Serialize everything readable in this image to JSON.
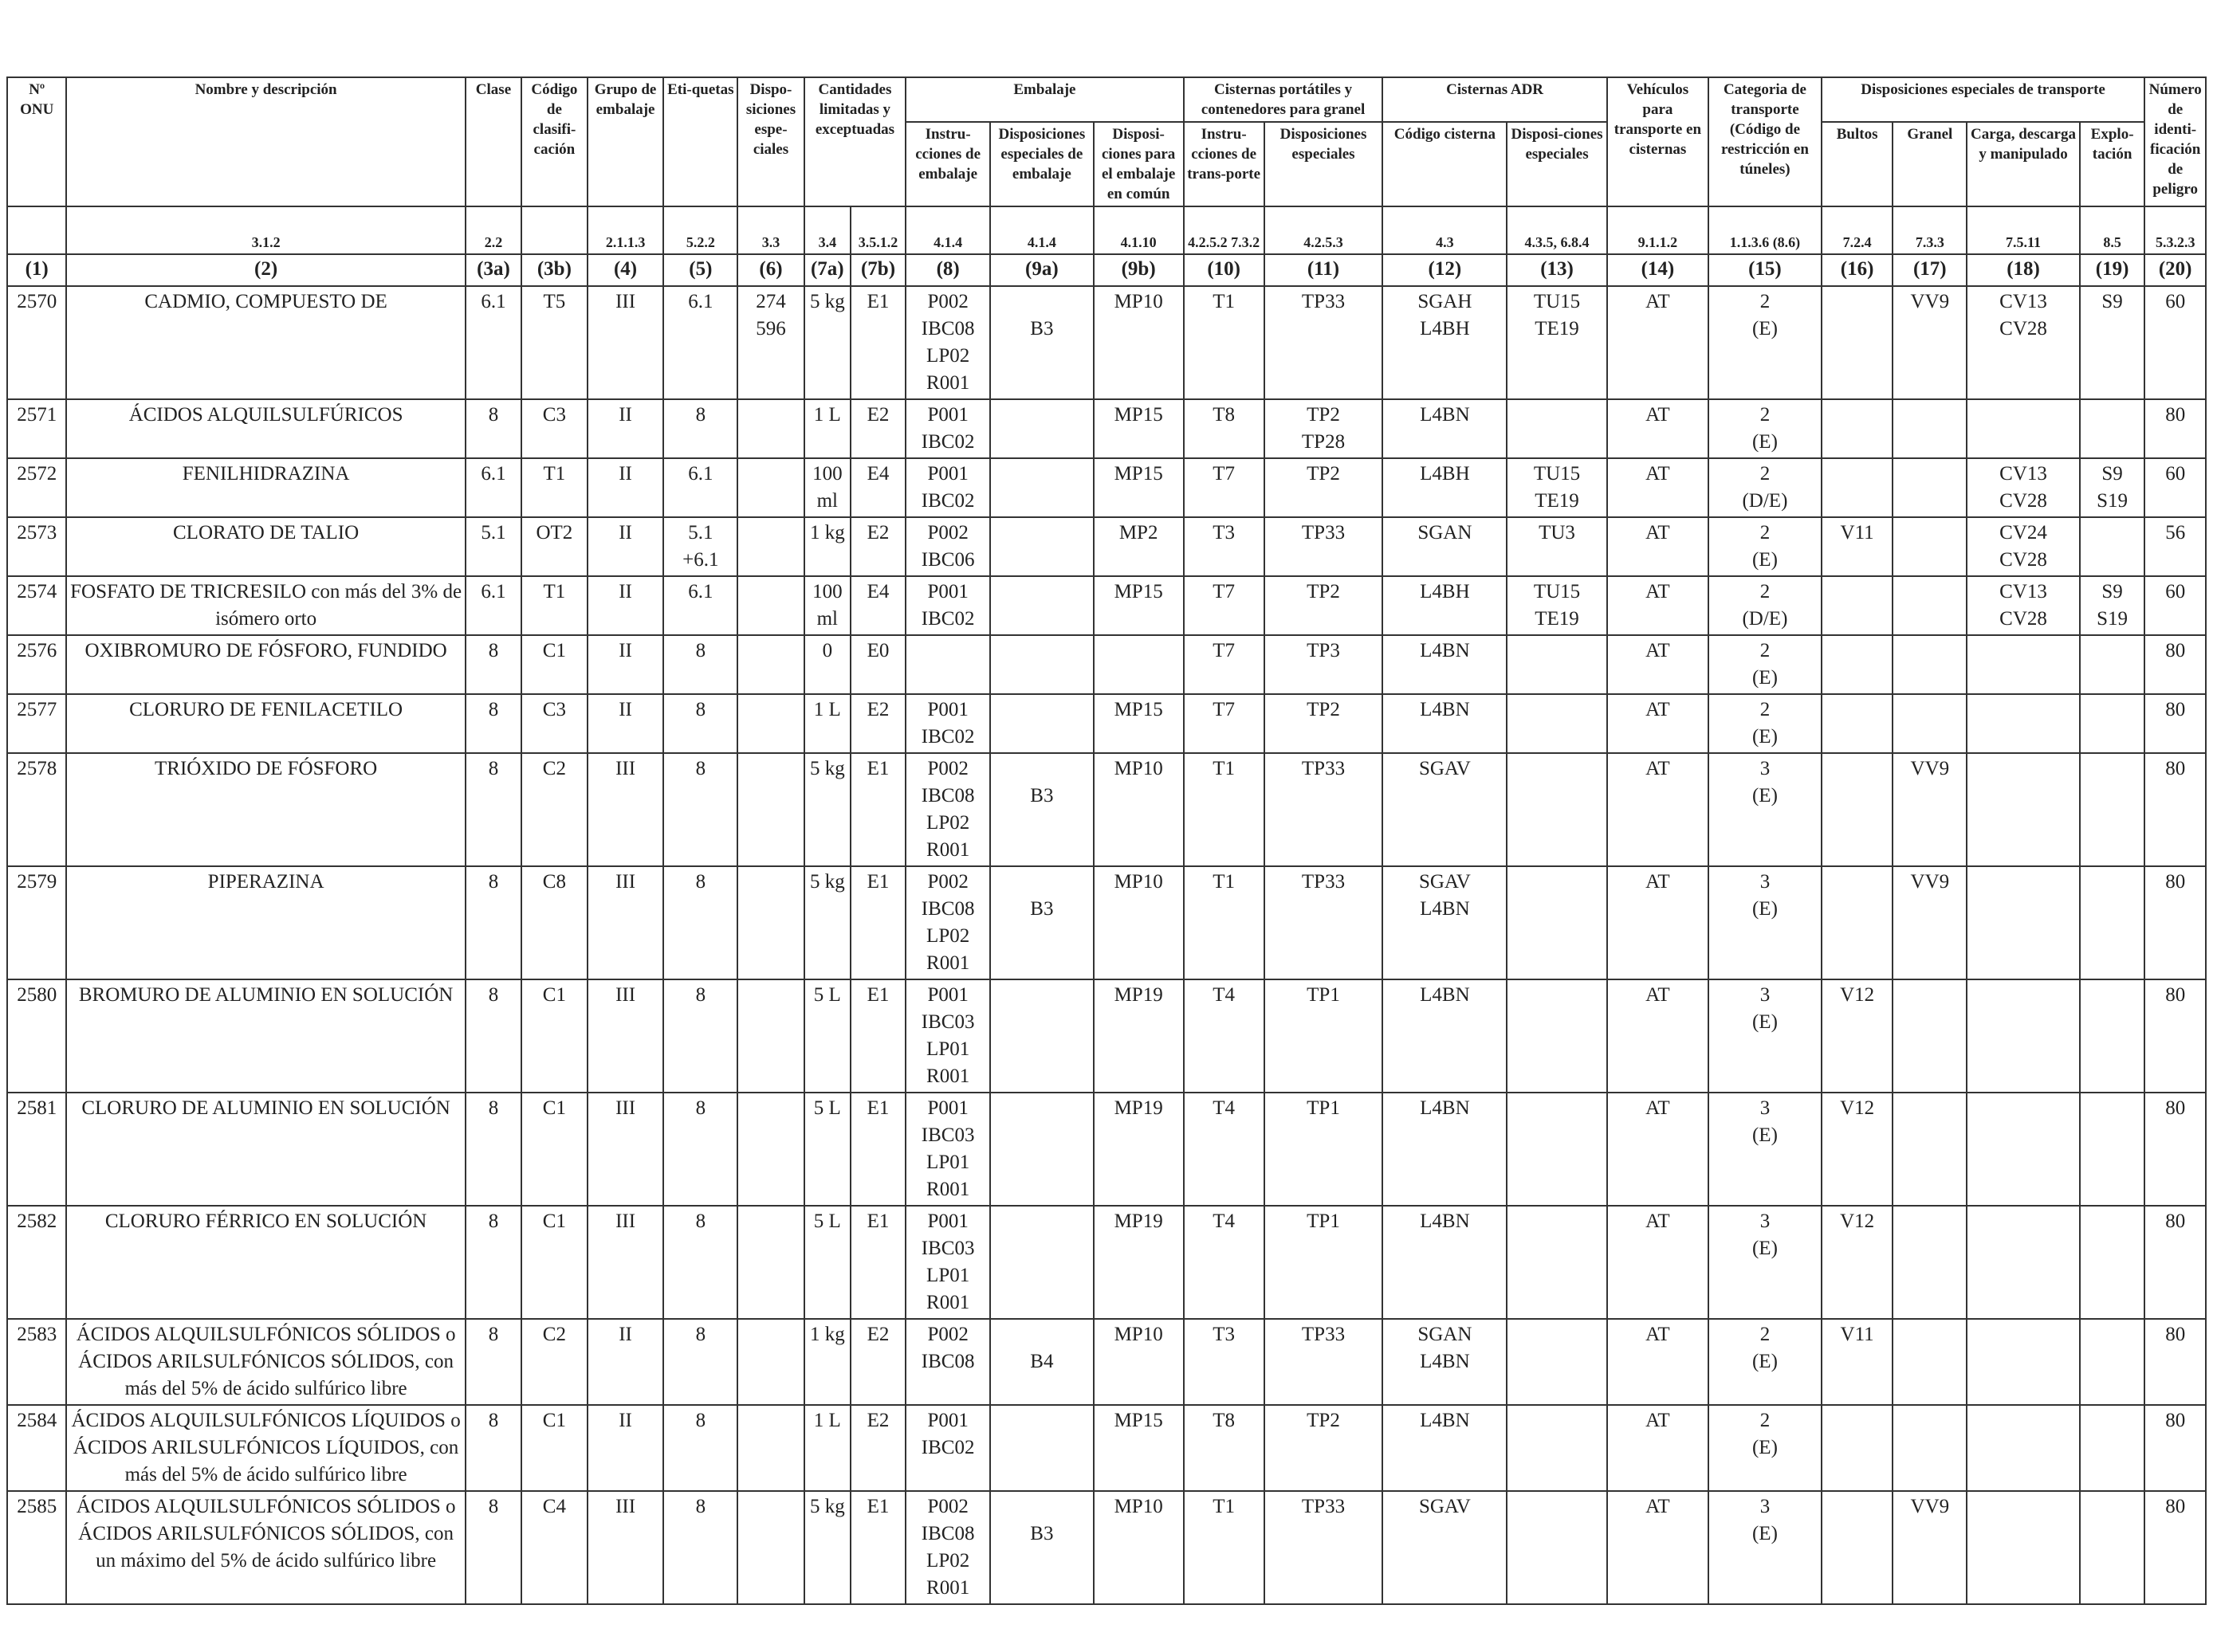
{
  "header": {
    "un": "Nº ONU",
    "name": "Nombre y descripción",
    "class": "Clase",
    "class_code": "Código de clasifi-cación",
    "packing_group": "Grupo de embalaje",
    "labels": "Eti-quetas",
    "special_provisions": "Dispo-siciones espe-ciales",
    "limited_qty": "Cantidades limitadas y exceptuadas",
    "packaging": "Embalaje",
    "packing_instr": "Instru-cciones de embalaje",
    "special_packing": "Disposiciones especiales de embalaje",
    "mixed_packing": "Disposi-ciones para el embalaje en común",
    "portable_tanks": "Cisternas portátiles y contenedores para granel",
    "pt_instr": "Instru-cciones de trans-porte",
    "pt_special": "Disposiciones especiales",
    "adr_tanks": "Cisternas ADR",
    "tank_code": "Código cisterna",
    "tank_special": "Disposi-ciones especiales",
    "vehicle": "Vehículos para transporte en cisternas",
    "transport_cat": "Categoria de transporte (Código de restricción en túneles)",
    "special_transport": "Disposiciones especiales de transporte",
    "packages": "Bultos",
    "bulk": "Granel",
    "loading": "Carga, descarga y manipulado",
    "operation": "Explo-tación",
    "hazard_id": "Número de identi-ficación de peligro"
  },
  "sections": [
    "",
    "3.1.2",
    "2.2",
    "",
    "2.1.1.3",
    "5.2.2",
    "3.3",
    "3.4",
    "3.5.1.2",
    "4.1.4",
    "4.1.4",
    "4.1.10",
    "4.2.5.2 7.3.2",
    "4.2.5.3",
    "4.3",
    "4.3.5, 6.8.4",
    "9.1.1.2",
    "1.1.3.6 (8.6)",
    "7.2.4",
    "7.3.3",
    "7.5.11",
    "8.5",
    "5.3.2.3"
  ],
  "column_numbers": [
    "(1)",
    "(2)",
    "(3a)",
    "(3b)",
    "(4)",
    "(5)",
    "(6)",
    "(7a)",
    "(7b)",
    "(8)",
    "(9a)",
    "(9b)",
    "(10)",
    "(11)",
    "(12)",
    "(13)",
    "(14)",
    "(15)",
    "(16)",
    "(17)",
    "(18)",
    "(19)",
    "(20)"
  ],
  "rows": [
    {
      "c": [
        [
          "2570"
        ],
        [
          "CADMIO, COMPUESTO DE"
        ],
        [
          "6.1"
        ],
        [
          "T5"
        ],
        [
          "III"
        ],
        [
          "6.1"
        ],
        [
          "274",
          "596"
        ],
        [
          "5 kg"
        ],
        [
          "E1"
        ],
        [
          "P002",
          "IBC08",
          "LP02",
          "R001"
        ],
        [
          "",
          "B3"
        ],
        [
          "MP10"
        ],
        [
          "T1"
        ],
        [
          "TP33"
        ],
        [
          "SGAH",
          "L4BH"
        ],
        [
          "TU15",
          "TE19"
        ],
        [
          "AT"
        ],
        [
          "2",
          "(E)"
        ],
        [
          ""
        ],
        [
          "VV9"
        ],
        [
          "CV13",
          "CV28"
        ],
        [
          "S9"
        ],
        [
          "60"
        ]
      ]
    },
    {
      "c": [
        [
          "2571"
        ],
        [
          "ÁCIDOS ALQUILSULFÚRICOS"
        ],
        [
          "8"
        ],
        [
          "C3"
        ],
        [
          "II"
        ],
        [
          "8"
        ],
        [
          ""
        ],
        [
          "1 L"
        ],
        [
          "E2"
        ],
        [
          "P001",
          "IBC02"
        ],
        [
          ""
        ],
        [
          "MP15"
        ],
        [
          "T8"
        ],
        [
          "TP2",
          "TP28"
        ],
        [
          "L4BN"
        ],
        [
          ""
        ],
        [
          "AT"
        ],
        [
          "2",
          "(E)"
        ],
        [
          ""
        ],
        [
          ""
        ],
        [
          ""
        ],
        [
          ""
        ],
        [
          "80"
        ]
      ]
    },
    {
      "c": [
        [
          "2572"
        ],
        [
          "FENILHIDRAZINA"
        ],
        [
          "6.1"
        ],
        [
          "T1"
        ],
        [
          "II"
        ],
        [
          "6.1"
        ],
        [
          ""
        ],
        [
          "100",
          "ml"
        ],
        [
          "E4"
        ],
        [
          "P001",
          "IBC02"
        ],
        [
          ""
        ],
        [
          "MP15"
        ],
        [
          "T7"
        ],
        [
          "TP2"
        ],
        [
          "L4BH"
        ],
        [
          "TU15",
          "TE19"
        ],
        [
          "AT"
        ],
        [
          "2",
          "(D/E)"
        ],
        [
          ""
        ],
        [
          ""
        ],
        [
          "CV13",
          "CV28"
        ],
        [
          "S9",
          "S19"
        ],
        [
          "60"
        ]
      ]
    },
    {
      "c": [
        [
          "2573"
        ],
        [
          "CLORATO DE TALIO"
        ],
        [
          "5.1"
        ],
        [
          "OT2"
        ],
        [
          "II"
        ],
        [
          "5.1",
          "+6.1"
        ],
        [
          ""
        ],
        [
          "1 kg"
        ],
        [
          "E2"
        ],
        [
          "P002",
          "IBC06"
        ],
        [
          ""
        ],
        [
          "MP2"
        ],
        [
          "T3"
        ],
        [
          "TP33"
        ],
        [
          "SGAN"
        ],
        [
          "TU3"
        ],
        [
          "AT"
        ],
        [
          "2",
          "(E)"
        ],
        [
          "V11"
        ],
        [
          ""
        ],
        [
          "CV24",
          "CV28"
        ],
        [
          ""
        ],
        [
          "56"
        ]
      ]
    },
    {
      "c": [
        [
          "2574"
        ],
        [
          "FOSFATO DE TRICRESILO con más del 3% de isómero orto"
        ],
        [
          "6.1"
        ],
        [
          "T1"
        ],
        [
          "II"
        ],
        [
          "6.1"
        ],
        [
          ""
        ],
        [
          "100",
          "ml"
        ],
        [
          "E4"
        ],
        [
          "P001",
          "IBC02"
        ],
        [
          ""
        ],
        [
          "MP15"
        ],
        [
          "T7"
        ],
        [
          "TP2"
        ],
        [
          "L4BH"
        ],
        [
          "TU15",
          "TE19"
        ],
        [
          "AT"
        ],
        [
          "2",
          "(D/E)"
        ],
        [
          ""
        ],
        [
          ""
        ],
        [
          "CV13",
          "CV28"
        ],
        [
          "S9",
          "S19"
        ],
        [
          "60"
        ]
      ]
    },
    {
      "c": [
        [
          "2576"
        ],
        [
          "OXIBROMURO DE FÓSFORO, FUNDIDO"
        ],
        [
          "8"
        ],
        [
          "C1"
        ],
        [
          "II"
        ],
        [
          "8"
        ],
        [
          ""
        ],
        [
          "0"
        ],
        [
          "E0"
        ],
        [
          ""
        ],
        [
          ""
        ],
        [
          ""
        ],
        [
          "T7"
        ],
        [
          "TP3"
        ],
        [
          "L4BN"
        ],
        [
          ""
        ],
        [
          "AT"
        ],
        [
          "2",
          "(E)"
        ],
        [
          ""
        ],
        [
          ""
        ],
        [
          ""
        ],
        [
          ""
        ],
        [
          "80"
        ]
      ]
    },
    {
      "c": [
        [
          "2577"
        ],
        [
          "CLORURO DE FENILACETILO"
        ],
        [
          "8"
        ],
        [
          "C3"
        ],
        [
          "II"
        ],
        [
          "8"
        ],
        [
          ""
        ],
        [
          "1 L"
        ],
        [
          "E2"
        ],
        [
          "P001",
          "IBC02"
        ],
        [
          ""
        ],
        [
          "MP15"
        ],
        [
          "T7"
        ],
        [
          "TP2"
        ],
        [
          "L4BN"
        ],
        [
          ""
        ],
        [
          "AT"
        ],
        [
          "2",
          "(E)"
        ],
        [
          ""
        ],
        [
          ""
        ],
        [
          ""
        ],
        [
          ""
        ],
        [
          "80"
        ]
      ]
    },
    {
      "c": [
        [
          "2578"
        ],
        [
          "TRIÓXIDO DE FÓSFORO"
        ],
        [
          "8"
        ],
        [
          "C2"
        ],
        [
          "III"
        ],
        [
          "8"
        ],
        [
          ""
        ],
        [
          "5 kg"
        ],
        [
          "E1"
        ],
        [
          "P002",
          "IBC08",
          "LP02",
          "R001"
        ],
        [
          "",
          "B3"
        ],
        [
          "MP10"
        ],
        [
          "T1"
        ],
        [
          "TP33"
        ],
        [
          "SGAV"
        ],
        [
          ""
        ],
        [
          "AT"
        ],
        [
          "3",
          "(E)"
        ],
        [
          ""
        ],
        [
          "VV9"
        ],
        [
          ""
        ],
        [
          ""
        ],
        [
          "80"
        ]
      ]
    },
    {
      "c": [
        [
          "2579"
        ],
        [
          "PIPERAZINA"
        ],
        [
          "8"
        ],
        [
          "C8"
        ],
        [
          "III"
        ],
        [
          "8"
        ],
        [
          ""
        ],
        [
          "5 kg"
        ],
        [
          "E1"
        ],
        [
          "P002",
          "IBC08",
          "LP02",
          "R001"
        ],
        [
          "",
          "B3"
        ],
        [
          "MP10"
        ],
        [
          "T1"
        ],
        [
          "TP33"
        ],
        [
          "SGAV",
          "L4BN"
        ],
        [
          ""
        ],
        [
          "AT"
        ],
        [
          "3",
          "(E)"
        ],
        [
          ""
        ],
        [
          "VV9"
        ],
        [
          ""
        ],
        [
          ""
        ],
        [
          "80"
        ]
      ]
    },
    {
      "c": [
        [
          "2580"
        ],
        [
          "BROMURO DE ALUMINIO EN SOLUCIÓN"
        ],
        [
          "8"
        ],
        [
          "C1"
        ],
        [
          "III"
        ],
        [
          "8"
        ],
        [
          ""
        ],
        [
          "5 L"
        ],
        [
          "E1"
        ],
        [
          "P001",
          "IBC03",
          "LP01",
          "R001"
        ],
        [
          ""
        ],
        [
          "MP19"
        ],
        [
          "T4"
        ],
        [
          "TP1"
        ],
        [
          "L4BN"
        ],
        [
          ""
        ],
        [
          "AT"
        ],
        [
          "3",
          "(E)"
        ],
        [
          "V12"
        ],
        [
          ""
        ],
        [
          ""
        ],
        [
          ""
        ],
        [
          "80"
        ]
      ]
    },
    {
      "c": [
        [
          "2581"
        ],
        [
          "CLORURO DE ALUMINIO EN SOLUCIÓN"
        ],
        [
          "8"
        ],
        [
          "C1"
        ],
        [
          "III"
        ],
        [
          "8"
        ],
        [
          ""
        ],
        [
          "5 L"
        ],
        [
          "E1"
        ],
        [
          "P001",
          "IBC03",
          "LP01",
          "R001"
        ],
        [
          ""
        ],
        [
          "MP19"
        ],
        [
          "T4"
        ],
        [
          "TP1"
        ],
        [
          "L4BN"
        ],
        [
          ""
        ],
        [
          "AT"
        ],
        [
          "3",
          "(E)"
        ],
        [
          "V12"
        ],
        [
          ""
        ],
        [
          ""
        ],
        [
          ""
        ],
        [
          "80"
        ]
      ]
    },
    {
      "c": [
        [
          "2582"
        ],
        [
          "CLORURO FÉRRICO EN SOLUCIÓN"
        ],
        [
          "8"
        ],
        [
          "C1"
        ],
        [
          "III"
        ],
        [
          "8"
        ],
        [
          ""
        ],
        [
          "5 L"
        ],
        [
          "E1"
        ],
        [
          "P001",
          "IBC03",
          "LP01",
          "R001"
        ],
        [
          ""
        ],
        [
          "MP19"
        ],
        [
          "T4"
        ],
        [
          "TP1"
        ],
        [
          "L4BN"
        ],
        [
          ""
        ],
        [
          "AT"
        ],
        [
          "3",
          "(E)"
        ],
        [
          "V12"
        ],
        [
          ""
        ],
        [
          ""
        ],
        [
          ""
        ],
        [
          "80"
        ]
      ]
    },
    {
      "c": [
        [
          "2583"
        ],
        [
          "ÁCIDOS ALQUILSULFÓNICOS SÓLIDOS o ÁCIDOS ARILSULFÓNICOS SÓLIDOS, con más del 5% de ácido sulfúrico libre"
        ],
        [
          "8"
        ],
        [
          "C2"
        ],
        [
          "II"
        ],
        [
          "8"
        ],
        [
          ""
        ],
        [
          "1 kg"
        ],
        [
          "E2"
        ],
        [
          "P002",
          "IBC08"
        ],
        [
          "",
          "B4"
        ],
        [
          "MP10"
        ],
        [
          "T3"
        ],
        [
          "TP33"
        ],
        [
          "SGAN",
          "L4BN"
        ],
        [
          ""
        ],
        [
          "AT"
        ],
        [
          "2",
          "(E)"
        ],
        [
          "V11"
        ],
        [
          ""
        ],
        [
          ""
        ],
        [
          ""
        ],
        [
          "80"
        ]
      ]
    },
    {
      "c": [
        [
          "2584"
        ],
        [
          "ÁCIDOS ALQUILSULFÓNICOS LÍQUIDOS o ÁCIDOS ARILSULFÓNICOS LÍQUIDOS, con más del 5% de ácido sulfúrico libre"
        ],
        [
          "8"
        ],
        [
          "C1"
        ],
        [
          "II"
        ],
        [
          "8"
        ],
        [
          ""
        ],
        [
          "1 L"
        ],
        [
          "E2"
        ],
        [
          "P001",
          "IBC02"
        ],
        [
          ""
        ],
        [
          "MP15"
        ],
        [
          "T8"
        ],
        [
          "TP2"
        ],
        [
          "L4BN"
        ],
        [
          ""
        ],
        [
          "AT"
        ],
        [
          "2",
          "(E)"
        ],
        [
          ""
        ],
        [
          ""
        ],
        [
          ""
        ],
        [
          ""
        ],
        [
          "80"
        ]
      ]
    },
    {
      "c": [
        [
          "2585"
        ],
        [
          "ÁCIDOS ALQUILSULFÓNICOS SÓLIDOS o ÁCIDOS ARILSULFÓNICOS SÓLIDOS, con un máximo del 5% de ácido sulfúrico libre"
        ],
        [
          "8"
        ],
        [
          "C4"
        ],
        [
          "III"
        ],
        [
          "8"
        ],
        [
          ""
        ],
        [
          "5 kg"
        ],
        [
          "E1"
        ],
        [
          "P002",
          "IBC08",
          "LP02",
          "R001"
        ],
        [
          "",
          "B3"
        ],
        [
          "MP10"
        ],
        [
          "T1"
        ],
        [
          "TP33"
        ],
        [
          "SGAV"
        ],
        [
          ""
        ],
        [
          "AT"
        ],
        [
          "3",
          "(E)"
        ],
        [
          ""
        ],
        [
          "VV9"
        ],
        [
          ""
        ],
        [
          ""
        ],
        [
          "80"
        ]
      ]
    }
  ]
}
